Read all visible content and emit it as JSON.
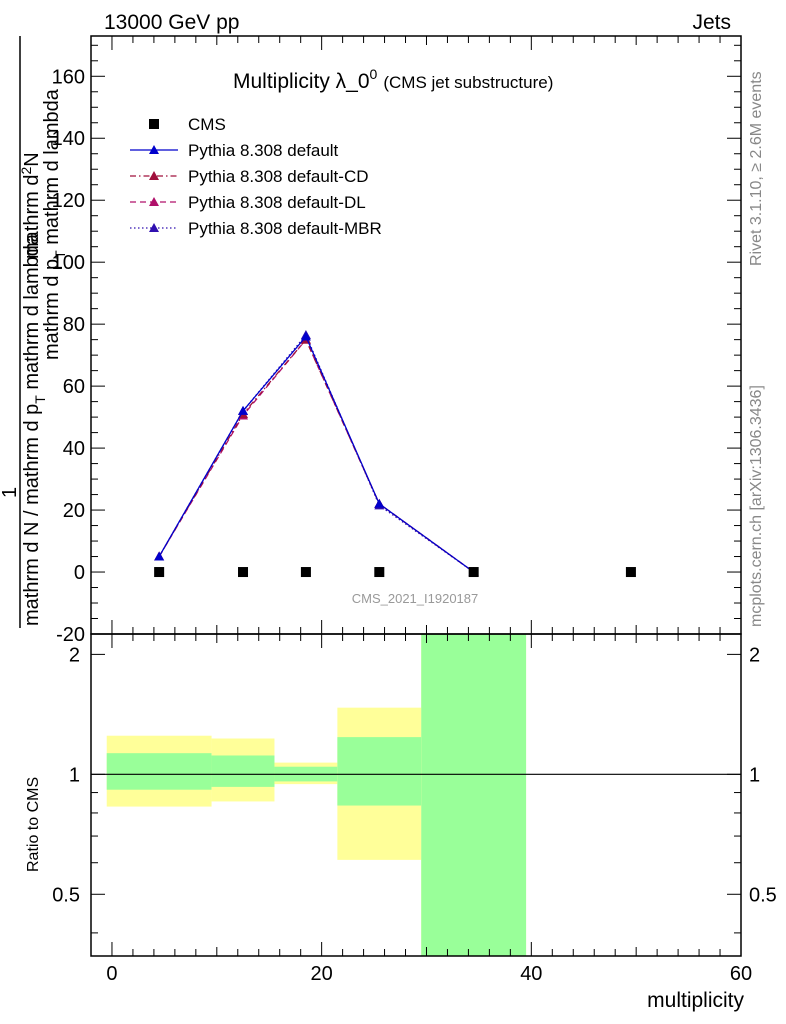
{
  "header": {
    "energy_label": "13000 GeV pp",
    "process_label": "Jets"
  },
  "side_labels": {
    "rivet": "Rivet 3.1.10, ≥ 2.6M events",
    "mcplots": "mcplots.cern.ch [arXiv:1306.3436]"
  },
  "title": {
    "main": "Multiplicity λ_0",
    "sup": "0",
    "sub": "(CMS jet substructure)"
  },
  "watermark": "CMS_2021_I1920187",
  "axes": {
    "ylabel_top": "1",
    "ylabel_top_denominator": "mathrm d N / mathrm d p",
    "ylabel_top_numerator": "mathrm d",
    "ylabel_top_extra": "mathrm d p",
    "ylabel_ratio": "Ratio to CMS",
    "xlabel": "multiplicity"
  },
  "ylabel_parts": {
    "numerator": "mathrm d",
    "numerator_sup": "2",
    "numerator_tail": "N",
    "denominator_a": "mathrm d p",
    "denominator_a_sub": "T",
    "denominator_b": " mathrm d lambda",
    "fraction_one": "1",
    "fraction_den": "mathrm d N / mathrm d p",
    "fraction_den_sub": "T"
  },
  "chart_data": {
    "type": "line",
    "x_range": [
      -2,
      60
    ],
    "y_range": [
      -20,
      173
    ],
    "ratio_range": [
      0.35,
      2.25
    ],
    "ratio_log": true,
    "x_ticks": [
      0,
      20,
      40,
      60
    ],
    "y_ticks": [
      -20,
      0,
      20,
      40,
      60,
      80,
      100,
      120,
      140,
      160
    ],
    "ratio_ticks": [
      0.5,
      1,
      2
    ],
    "ratio_tick_labels": [
      "0.5",
      "1",
      "2"
    ],
    "legend": [
      {
        "name": "CMS",
        "color": "#000000",
        "marker": "square",
        "line": "none"
      },
      {
        "name": "Pythia 8.308 default",
        "color": "#0000cc",
        "marker": "triangle",
        "line": "solid"
      },
      {
        "name": "Pythia 8.308 default-CD",
        "color": "#a0103c",
        "marker": "triangle",
        "line": "dashdot"
      },
      {
        "name": "Pythia 8.308 default-DL",
        "color": "#b0106a",
        "marker": "triangle",
        "line": "dashed"
      },
      {
        "name": "Pythia 8.308 default-MBR",
        "color": "#3010b0",
        "marker": "triangle",
        "line": "dotted"
      }
    ],
    "cms": {
      "x": [
        4.5,
        12.5,
        18.5,
        25.5,
        34.5,
        49.5
      ],
      "y": [
        0,
        0,
        0,
        0,
        0,
        0
      ]
    },
    "series": [
      {
        "name": "Pythia 8.308 default",
        "x": [
          4.5,
          12.5,
          18.5,
          25.5,
          34.5
        ],
        "y": [
          5,
          52,
          76,
          22,
          0
        ]
      },
      {
        "name": "Pythia 8.308 default-CD",
        "x": [
          4.5,
          12.5,
          18.5,
          25.5,
          34.5
        ],
        "y": [
          5,
          51,
          75,
          22,
          0
        ]
      },
      {
        "name": "Pythia 8.308 default-DL",
        "x": [
          4.5,
          12.5,
          18.5,
          25.5,
          34.5
        ],
        "y": [
          5,
          50.5,
          75,
          22,
          0
        ]
      },
      {
        "name": "Pythia 8.308 default-MBR",
        "x": [
          4.5,
          12.5,
          18.5,
          25.5,
          34.5
        ],
        "y": [
          5,
          52,
          76.5,
          21.5,
          0
        ]
      }
    ],
    "ratio_bands": [
      {
        "x0": -0.5,
        "x1": 9.5,
        "yellow": [
          0.83,
          1.25
        ],
        "green": [
          0.915,
          1.13
        ]
      },
      {
        "x0": 9.5,
        "x1": 15.5,
        "yellow": [
          0.855,
          1.23
        ],
        "green": [
          0.93,
          1.115
        ]
      },
      {
        "x0": 15.5,
        "x1": 21.5,
        "yellow": [
          0.945,
          1.07
        ],
        "green": [
          0.96,
          1.045
        ]
      },
      {
        "x0": 21.5,
        "x1": 29.5,
        "yellow": [
          0.61,
          1.47
        ],
        "green": [
          0.835,
          1.24
        ]
      },
      {
        "x0": 29.5,
        "x1": 39.5,
        "yellow": [
          0.35,
          2.25
        ],
        "green": [
          0.35,
          2.25
        ]
      }
    ],
    "colors": {
      "green": "#99ff99",
      "yellow": "#ffff99"
    }
  }
}
